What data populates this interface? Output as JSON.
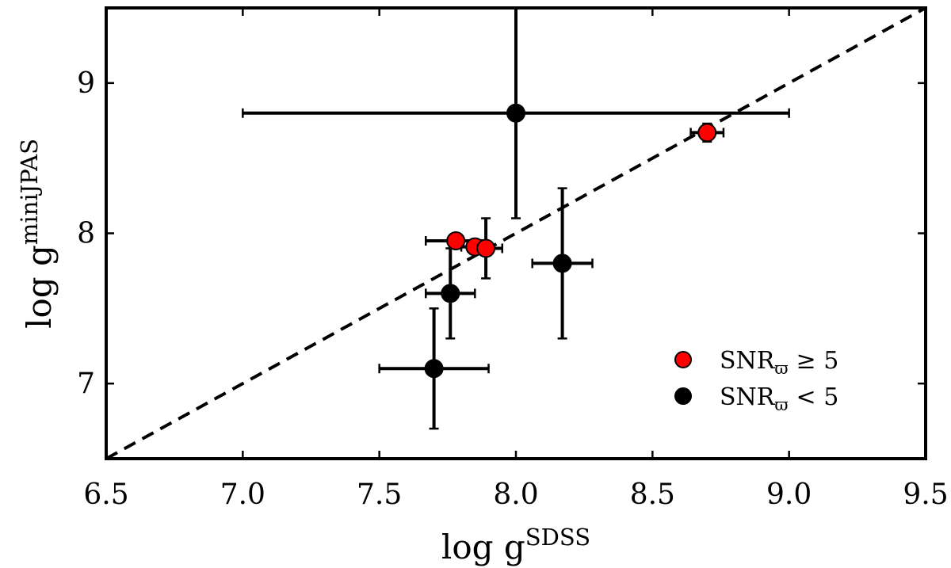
{
  "chart_data": {
    "type": "scatter",
    "title": "",
    "xlabel": {
      "base": "log g",
      "sup": "SDSS"
    },
    "ylabel": {
      "base": "log g",
      "sup": "miniJPAS"
    },
    "xlim": [
      6.5,
      9.5
    ],
    "ylim": [
      6.5,
      9.5
    ],
    "x_ticks": [
      "6.5",
      "7.0",
      "7.5",
      "8.0",
      "8.5",
      "9.0",
      "9.5"
    ],
    "y_ticks": [
      "7",
      "8",
      "9"
    ],
    "reference_line": {
      "style": "dashed",
      "color": "#000000",
      "from": [
        6.5,
        6.5
      ],
      "to": [
        9.5,
        9.5
      ]
    },
    "grid": false,
    "legend_position": "lower-right",
    "series": [
      {
        "name": "SNR_ϖ ≥ 5",
        "legend_main": "SNR",
        "legend_sub": "ϖ",
        "legend_rel": "≥ 5",
        "color": "#ff0000",
        "points": [
          {
            "x": 7.78,
            "y": 7.95,
            "xerr": 0.11,
            "yerr": 0.04
          },
          {
            "x": 7.85,
            "y": 7.91,
            "xerr": 0.05,
            "yerr": 0.04
          },
          {
            "x": 7.89,
            "y": 7.9,
            "xerr": 0.06,
            "yerr": 0.04
          },
          {
            "x": 8.7,
            "y": 8.67,
            "xerr": 0.06,
            "yerr": 0.06
          }
        ]
      },
      {
        "name": "SNR_ϖ < 5",
        "legend_main": "SNR",
        "legend_sub": "ϖ",
        "legend_rel": "< 5",
        "color": "#000000",
        "points": [
          {
            "x": 8.0,
            "y": 8.8,
            "xerr": 1.0,
            "yerr": 0.7
          },
          {
            "x": 7.76,
            "y": 7.6,
            "xerr": 0.09,
            "yerr": 0.3
          },
          {
            "x": 7.7,
            "y": 7.1,
            "xerr": 0.2,
            "yerr": 0.4
          },
          {
            "x": 8.17,
            "y": 7.8,
            "xerr": 0.11,
            "yerr": 0.5
          },
          {
            "x": 7.89,
            "y": 7.9,
            "xerr": 0.0,
            "yerr": 0.2
          }
        ]
      }
    ]
  }
}
